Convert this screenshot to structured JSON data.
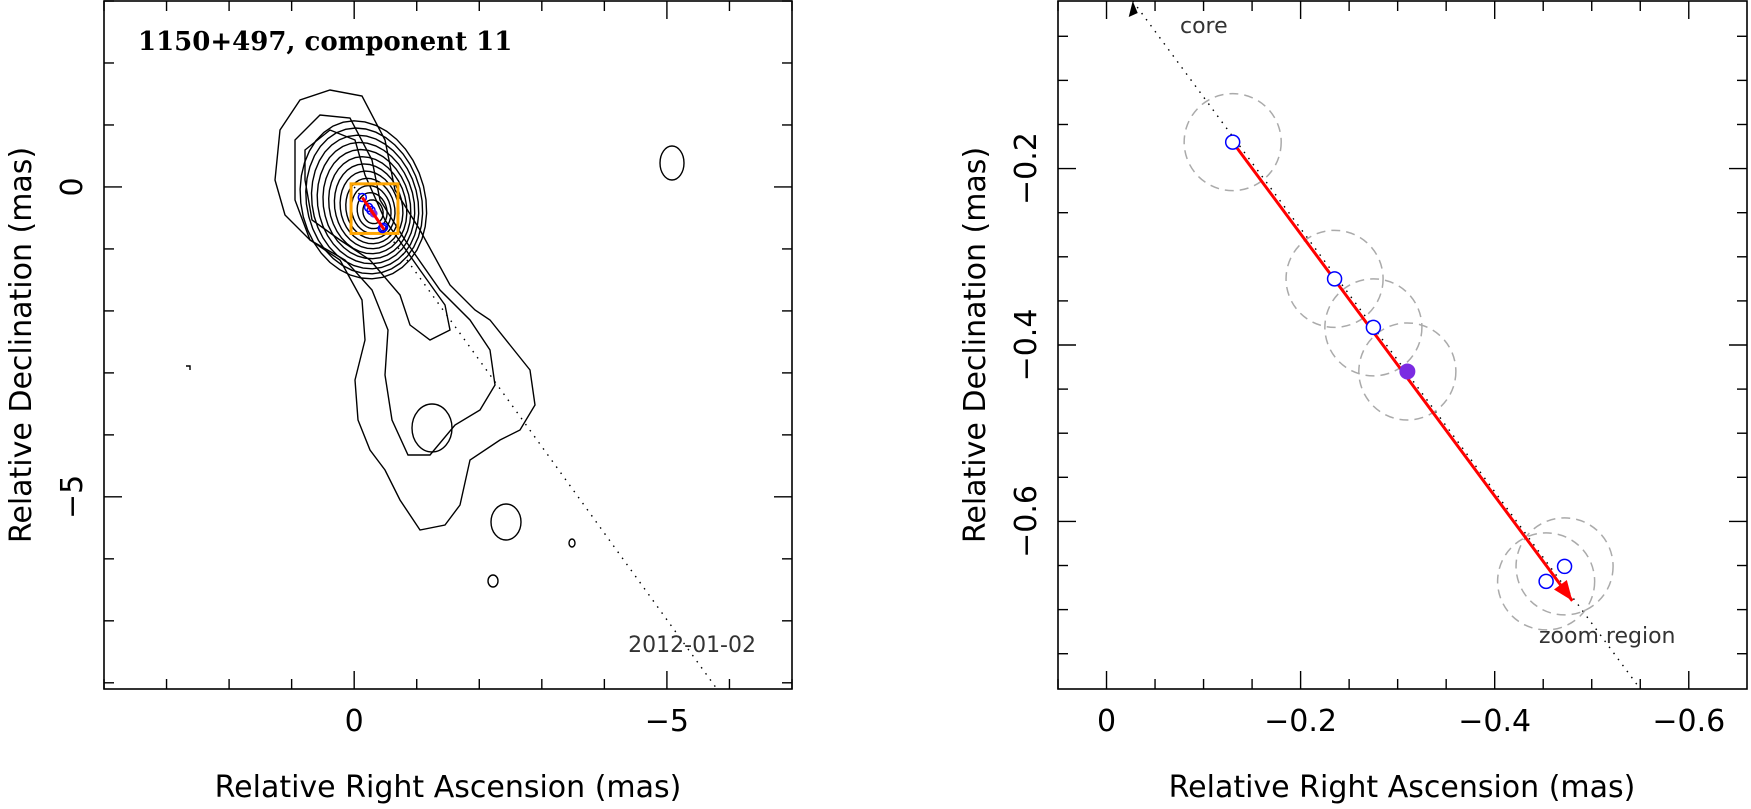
{
  "chart_data": [
    {
      "type": "contour",
      "title": "1150+497, component 11",
      "epoch_label": "2012-01-02",
      "xlabel": "Relative Right Ascension (mas)",
      "ylabel": "Relative Declination (mas)",
      "xlim": [
        4,
        -7
      ],
      "ylim": [
        -8.1,
        3
      ],
      "xticks": [
        0,
        -5
      ],
      "yticks": [
        0,
        -5
      ],
      "jet_axis": {
        "from": [
          0,
          0
        ],
        "to": [
          -5.8,
          -8.1
        ]
      },
      "components": [
        [
          -0.13,
          -0.17
        ],
        [
          -0.23,
          -0.33
        ],
        [
          -0.27,
          -0.38
        ],
        [
          -0.47,
          -0.65
        ],
        [
          -0.45,
          -0.67
        ]
      ],
      "current_component": [
        -0.31,
        -0.43
      ],
      "motion_vector": {
        "from": [
          -0.13,
          -0.17
        ],
        "to": [
          -0.48,
          -0.69
        ]
      },
      "zoom_region": {
        "x": [
          0.05,
          -0.7
        ],
        "y": [
          0.05,
          -0.75
        ]
      },
      "colors": {
        "contours": "#000000",
        "components": "#0000ff",
        "current": "#7b2be2",
        "vector": "#ff0000",
        "zoom_box": "#ffa500",
        "axis": "#000000"
      }
    },
    {
      "type": "scatter",
      "xlabel": "Relative Right Ascension (mas)",
      "ylabel": "Relative Declination (mas)",
      "xlim": [
        0.05,
        -0.66
      ],
      "ylim": [
        -0.79,
        -0.01
      ],
      "xticks": [
        0,
        -0.2,
        -0.4,
        -0.6
      ],
      "xticklabels": [
        "0",
        "−0.2",
        "−0.4",
        "−0.6"
      ],
      "yticks": [
        -0.2,
        -0.4,
        -0.6
      ],
      "yticklabels": [
        "−0.2",
        "−0.4",
        "−0.6"
      ],
      "annotations": [
        "core",
        "zoom region"
      ],
      "components": [
        {
          "x": -0.13,
          "y": -0.17,
          "r": 0.05
        },
        {
          "x": -0.235,
          "y": -0.325,
          "r": 0.05
        },
        {
          "x": -0.275,
          "y": -0.38,
          "r": 0.05
        },
        {
          "x": -0.472,
          "y": -0.651,
          "r": 0.05
        },
        {
          "x": -0.453,
          "y": -0.668,
          "r": 0.05
        }
      ],
      "current_component": {
        "x": -0.31,
        "y": -0.43,
        "r": 0.05
      },
      "motion_vector": {
        "from": [
          -0.13,
          -0.17
        ],
        "to": [
          -0.48,
          -0.69
        ]
      },
      "core_direction": {
        "from": [
          -0.13,
          -0.17
        ],
        "to": [
          -0.027,
          -0.01
        ]
      },
      "colors": {
        "components": "#0000ff",
        "current": "#7b2be2",
        "vector": "#ff0000",
        "error_circles": "#aaaaaa",
        "axis": "#000000"
      }
    }
  ]
}
